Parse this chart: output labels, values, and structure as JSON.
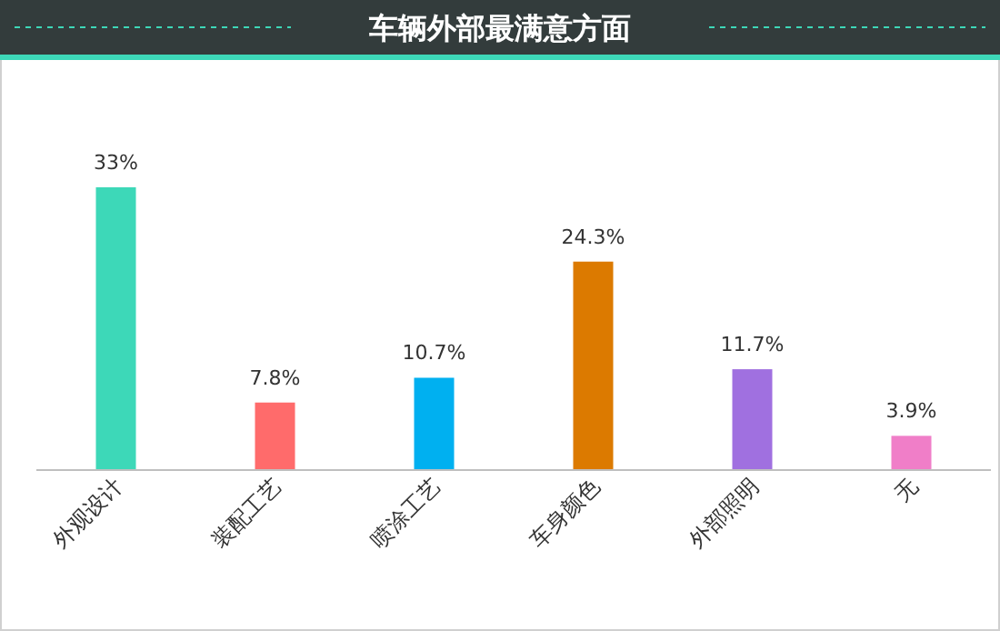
{
  "chart_data": {
    "type": "bar",
    "title": "车辆外部最满意方面",
    "categories": [
      "外观设计",
      "装配工艺",
      "喷涂工艺",
      "车身颜色",
      "外部照明",
      "无"
    ],
    "values": [
      33,
      7.8,
      10.7,
      24.3,
      11.7,
      3.9
    ],
    "colors": [
      "#3dd8b8",
      "#ff6b6b",
      "#00b0f0",
      "#dc7a00",
      "#a070e0",
      "#f07ec8"
    ],
    "value_labels": [
      "33%",
      "7.8%",
      "10.7%",
      "24.3%",
      "11.7%",
      "3.9%"
    ]
  }
}
